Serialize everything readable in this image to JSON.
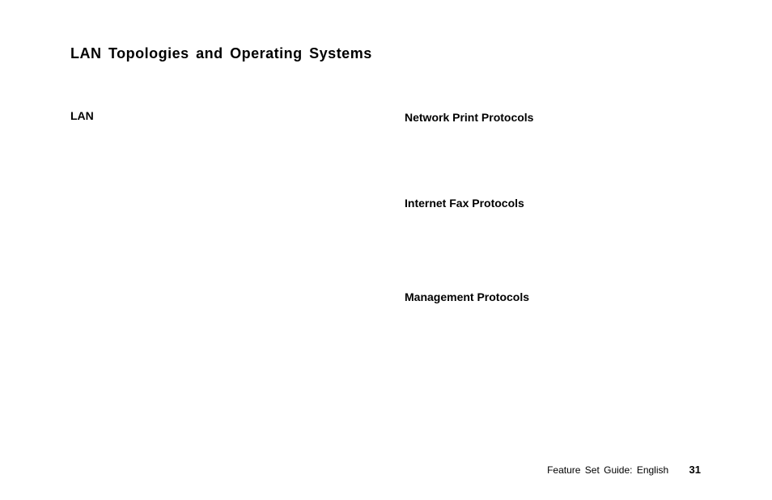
{
  "page": {
    "title": "LAN Topologies and Operating Systems",
    "background_color": "#ffffff",
    "text_color": "#000000",
    "title_fontsize": 18,
    "heading_fontsize": 14,
    "footer_fontsize": 12,
    "font_family": "Arial, Helvetica, sans-serif"
  },
  "left_column": {
    "heading": "LAN"
  },
  "right_column": {
    "headings": [
      "Network Print Protocols",
      "Internet Fax Protocols",
      "Management Protocols"
    ]
  },
  "footer": {
    "text": "Feature Set Guide:  English",
    "page_number": "31"
  }
}
